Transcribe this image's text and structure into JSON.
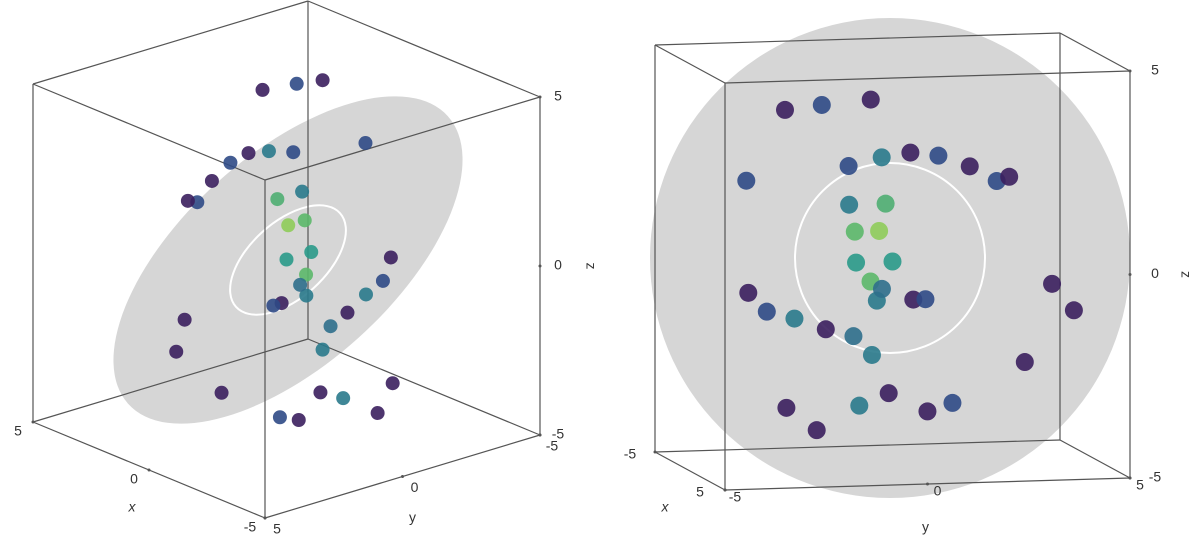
{
  "chart_data": [
    {
      "type": "scatter3d",
      "xlabel": "x",
      "ylabel": "y",
      "zlabel": "z",
      "xlim": [
        -5,
        5
      ],
      "ylim": [
        -5,
        5
      ],
      "zlim": [
        -5,
        5
      ],
      "xticks": [
        -5,
        0,
        5
      ],
      "yticks": [
        -5,
        0,
        5
      ],
      "zticks": [
        -5,
        0,
        5
      ],
      "points": {
        "x": [
          1.25,
          1.35,
          1.4,
          1.35,
          1.2,
          1.0,
          1.05,
          0.75,
          0.4,
          0.0,
          -0.25,
          -0.5,
          0.75,
          0.4,
          0.0,
          -0.35,
          -0.35,
          -0.6,
          -0.7,
          -0.85,
          -0.95,
          -1.2,
          -1.7,
          -1.95,
          -1.85,
          -0.5,
          -0.5,
          2.0,
          2.05,
          2.1,
          1.1,
          -0.35,
          -0.7,
          -1.35,
          -2.15,
          -1.85,
          -1.85
        ],
        "y": [
          -1.3,
          -0.5,
          0.2,
          0.9,
          1.7,
          2.4,
          2.7,
          -1.2,
          -1.0,
          -0.9,
          -0.5,
          -0.3,
          -0.3,
          -0.4,
          0.0,
          -0.2,
          -3.5,
          -3.0,
          -2.3,
          -1.5,
          -0.8,
          -0.3,
          0.2,
          1.2,
          1.8,
          0.6,
          0.9,
          -3.0,
          -2.1,
          -0.9,
          -3.8,
          4.0,
          4.6,
          3.5,
          -1.5,
          -0.5,
          -2.3
        ],
        "z": [
          2.5,
          2.7,
          2.8,
          2.7,
          2.4,
          2.0,
          2.1,
          1.5,
          0.8,
          0.0,
          -0.5,
          -1.0,
          1.5,
          0.8,
          0.0,
          -0.7,
          -0.7,
          -1.2,
          -1.4,
          -1.7,
          -1.9,
          -2.4,
          -3.4,
          -3.9,
          -3.7,
          -1.0,
          -1.0,
          4.0,
          4.1,
          4.2,
          2.2,
          -0.7,
          -1.4,
          -2.7,
          -4.3,
          -3.7,
          -3.7
        ]
      },
      "colors": [
        "#2f4a86",
        "#2a7a8c",
        "#3b1f5e",
        "#2f4a86",
        "#3b1f5e",
        "#2f4a86",
        "#3b1f5e",
        "#2a7a8c",
        "#5cb86a",
        "#2a9a8a",
        "#5cb86a",
        "#2a7a8c",
        "#4fae72",
        "#8fcc5a",
        "#2a9a8a",
        "#2f6f8c",
        "#3b1f5e",
        "#2f4a86",
        "#2a7a8c",
        "#3b1f5e",
        "#2f6f8c",
        "#2a7a8c",
        "#3b1f5e",
        "#3b1f5e",
        "#2f4a86",
        "#3b1f5e",
        "#2f4a86",
        "#3b1f5e",
        "#2f4a86",
        "#3b1f5e",
        "#2f4a86",
        "#3b1f5e",
        "#3b1f5e",
        "#3b1f5e",
        "#3b1f5e",
        "#2a7a8c",
        "#3b1f5e"
      ]
    },
    {
      "type": "scatter3d",
      "xlabel": "x",
      "ylabel": "y",
      "zlabel": "z",
      "xlim": [
        -5,
        5
      ],
      "ylim": [
        -5,
        5
      ],
      "zlim": [
        -5,
        5
      ],
      "xticks": [
        -5,
        5
      ],
      "yticks": [
        -5,
        0,
        5
      ],
      "zticks": [
        -5,
        0,
        5
      ],
      "points": {
        "x": [
          1.25,
          1.35,
          1.4,
          1.35,
          1.2,
          1.0,
          1.05,
          0.75,
          0.4,
          0.0,
          -0.25,
          -0.5,
          0.75,
          0.4,
          0.0,
          -0.35,
          -0.35,
          -0.6,
          -0.7,
          -0.85,
          -0.95,
          -1.2,
          -1.7,
          -1.95,
          -1.85,
          -0.5,
          -0.5,
          2.0,
          2.05,
          2.1,
          1.1,
          -0.35,
          -0.7,
          -1.35,
          -2.15,
          -1.85,
          -1.85
        ],
        "y": [
          -1.3,
          -0.5,
          0.2,
          0.9,
          1.7,
          2.4,
          2.7,
          -1.2,
          -1.0,
          -0.9,
          -0.5,
          -0.3,
          -0.3,
          -0.4,
          0.0,
          -0.2,
          -3.5,
          -3.0,
          -2.3,
          -1.5,
          -0.8,
          -0.3,
          0.2,
          1.2,
          1.8,
          0.6,
          0.9,
          -3.0,
          -2.1,
          -0.9,
          -3.8,
          4.0,
          4.6,
          3.5,
          -1.5,
          -0.5,
          -2.3
        ],
        "z": [
          2.5,
          2.7,
          2.8,
          2.7,
          2.4,
          2.0,
          2.1,
          1.5,
          0.8,
          0.0,
          -0.5,
          -1.0,
          1.5,
          0.8,
          0.0,
          -0.7,
          -0.7,
          -1.2,
          -1.4,
          -1.7,
          -1.9,
          -2.4,
          -3.4,
          -3.9,
          -3.7,
          -1.0,
          -1.0,
          4.0,
          4.1,
          4.2,
          2.2,
          -0.7,
          -1.4,
          -2.7,
          -4.3,
          -3.7,
          -3.7
        ]
      },
      "colors": [
        "#2f4a86",
        "#2a7a8c",
        "#3b1f5e",
        "#2f4a86",
        "#3b1f5e",
        "#2f4a86",
        "#3b1f5e",
        "#2a7a8c",
        "#5cb86a",
        "#2a9a8a",
        "#5cb86a",
        "#2a7a8c",
        "#4fae72",
        "#8fcc5a",
        "#2a9a8a",
        "#2f6f8c",
        "#3b1f5e",
        "#2f4a86",
        "#2a7a8c",
        "#3b1f5e",
        "#2f6f8c",
        "#2a7a8c",
        "#3b1f5e",
        "#3b1f5e",
        "#2f4a86",
        "#3b1f5e",
        "#2f4a86",
        "#3b1f5e",
        "#2f4a86",
        "#3b1f5e",
        "#2f4a86",
        "#3b1f5e",
        "#3b1f5e",
        "#3b1f5e",
        "#3b1f5e",
        "#2a7a8c",
        "#3b1f5e"
      ]
    }
  ]
}
